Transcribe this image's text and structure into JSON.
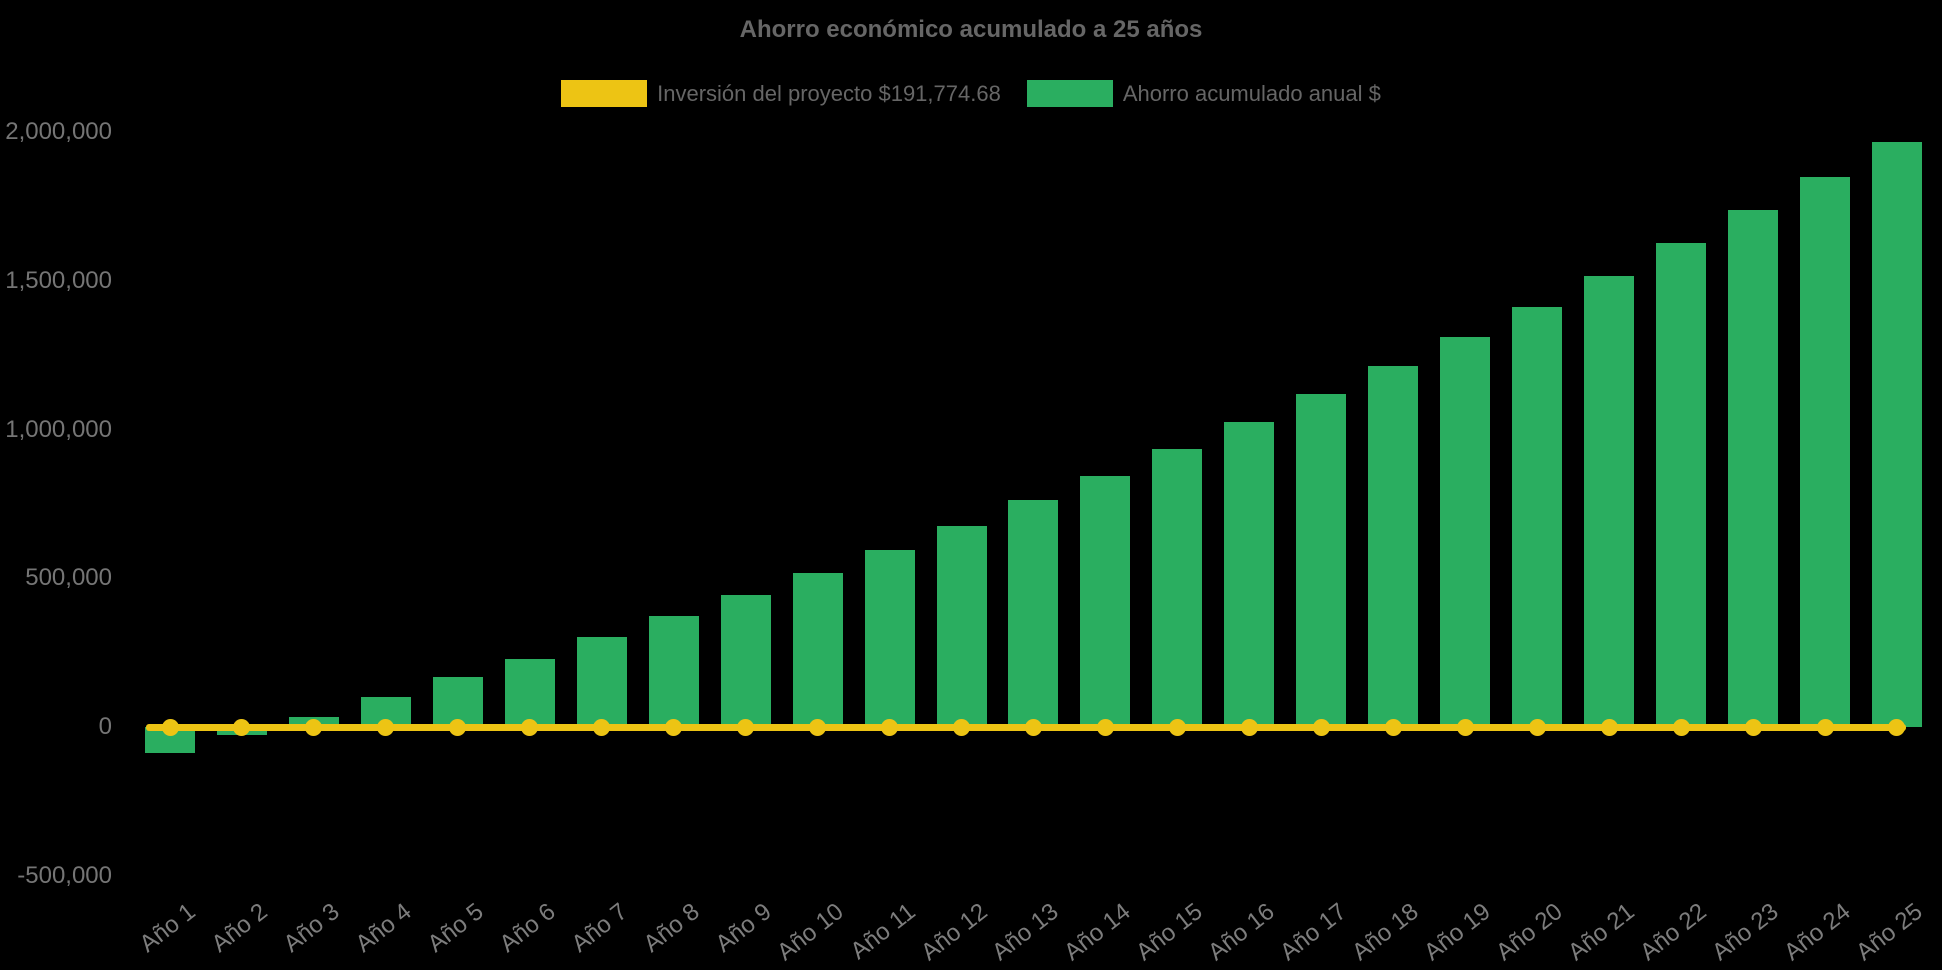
{
  "title": "Ahorro económico acumulado a 25 años",
  "colors": {
    "background": "#000000",
    "bar_green": "#2aae60",
    "line_yellow": "#edc414",
    "title_text": "#666666",
    "axis_tick_text": "#757575"
  },
  "legend": {
    "items": [
      {
        "label": "Inversión del proyecto $191,774.68",
        "color": "#edc414",
        "series": "line"
      },
      {
        "label": "Ahorro acumulado anual $",
        "color": "#2aae60",
        "series": "bar"
      }
    ]
  },
  "chart_data": {
    "type": "bar",
    "title": "Ahorro económico acumulado a 25 años",
    "categories": [
      "Año 1",
      "Año 2",
      "Año 3",
      "Año 4",
      "Año 5",
      "Año 6",
      "Año 7",
      "Año 8",
      "Año 9",
      "Año 10",
      "Año 11",
      "Año 12",
      "Año 13",
      "Año 14",
      "Año 15",
      "Año 16",
      "Año 17",
      "Año 18",
      "Año 19",
      "Año 20",
      "Año 21",
      "Año 22",
      "Año 23",
      "Año 24",
      "Año 25"
    ],
    "series": [
      {
        "name": "Inversión del proyecto $191,774.68",
        "type": "line",
        "color": "#edc414",
        "investment_amount_label": "$191,774.68",
        "values": [
          0,
          0,
          0,
          0,
          0,
          0,
          0,
          0,
          0,
          0,
          0,
          0,
          0,
          0,
          0,
          0,
          0,
          0,
          0,
          0,
          0,
          0,
          0,
          0,
          0
        ]
      },
      {
        "name": "Ahorro acumulado anual $",
        "type": "bar",
        "color": "#2aae60",
        "values": [
          -86000,
          -27000,
          35000,
          101000,
          168000,
          230000,
          303000,
          373000,
          444000,
          518000,
          595000,
          676000,
          763000,
          844000,
          934000,
          1025000,
          1119000,
          1213000,
          1311000,
          1412000,
          1516000,
          1627000,
          1738000,
          1849000,
          1966000
        ]
      }
    ],
    "xlabel": "",
    "ylabel": "",
    "ylim": [
      -500000,
      2000000
    ],
    "yticks": [
      2000000,
      1500000,
      1000000,
      500000,
      0,
      -500000
    ],
    "ytick_labels": [
      "2,000,000",
      "1,500,000",
      "1,000,000",
      "500,000",
      "0",
      "-500,000"
    ],
    "grid": false,
    "legend_position": "top",
    "values_are_estimates_read_from_pixels": true
  }
}
